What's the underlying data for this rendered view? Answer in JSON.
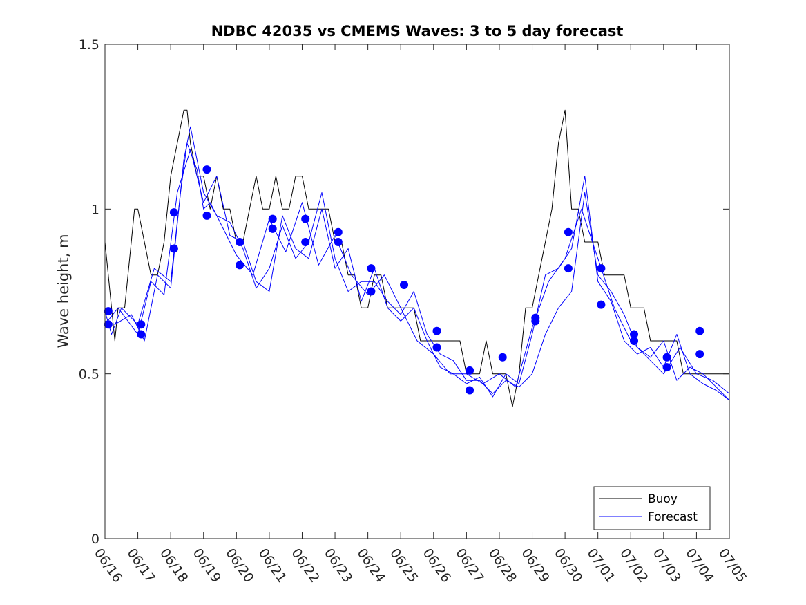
{
  "chart_data": {
    "type": "line",
    "title": "NDBC 42035 vs CMEMS Waves: 3 to 5 day forecast",
    "xlabel": "",
    "ylabel": "Wave height, m",
    "ylim": [
      0,
      1.5
    ],
    "yticks": [
      "0",
      "0.5",
      "1",
      "1.5"
    ],
    "xlim_days": [
      0,
      19
    ],
    "xtick_labels": [
      "06/16",
      "06/17",
      "06/18",
      "06/19",
      "06/20",
      "06/21",
      "06/22",
      "06/23",
      "06/24",
      "06/25",
      "06/26",
      "06/27",
      "06/28",
      "06/29",
      "06/30",
      "07/01",
      "07/02",
      "07/03",
      "07/04",
      "07/05"
    ],
    "grid": false,
    "legend_position": "bottom-right",
    "colors": {
      "buoy": "#000000",
      "forecast": "#0000ff",
      "markers": "#0000ff"
    },
    "series": [
      {
        "name": "Buoy",
        "style": "line",
        "x": [
          0,
          0.1,
          0.2,
          0.3,
          0.4,
          0.6,
          0.8,
          0.9,
          1.0,
          1.2,
          1.4,
          1.6,
          1.8,
          1.9,
          2.0,
          2.2,
          2.4,
          2.5,
          2.6,
          2.8,
          3.0,
          3.2,
          3.4,
          3.6,
          3.8,
          4.0,
          4.2,
          4.4,
          4.6,
          4.8,
          5.0,
          5.2,
          5.4,
          5.6,
          5.8,
          6.0,
          6.2,
          6.4,
          6.6,
          6.8,
          7.0,
          7.2,
          7.4,
          7.6,
          7.8,
          8.0,
          8.2,
          8.4,
          8.6,
          8.8,
          9.0,
          9.2,
          9.4,
          9.6,
          9.8,
          10.0,
          10.2,
          10.4,
          10.6,
          10.8,
          11.0,
          11.2,
          11.4,
          11.6,
          11.8,
          12.0,
          12.2,
          12.4,
          12.6,
          12.8,
          13.0,
          13.2,
          13.4,
          13.6,
          13.8,
          14.0,
          14.2,
          14.4,
          14.6,
          14.8,
          15.0,
          15.2,
          15.4,
          15.6,
          15.8,
          16.0,
          16.2,
          16.4,
          16.6,
          16.8,
          17.0,
          17.2,
          17.4,
          17.6,
          17.8,
          18.0,
          18.2,
          18.4,
          18.6,
          18.8,
          19.0
        ],
        "values": [
          0.9,
          0.8,
          0.7,
          0.6,
          0.7,
          0.7,
          0.9,
          1.0,
          1.0,
          0.9,
          0.8,
          0.8,
          0.9,
          1.0,
          1.1,
          1.2,
          1.3,
          1.3,
          1.2,
          1.1,
          1.1,
          1.0,
          1.1,
          1.0,
          1.0,
          0.9,
          0.9,
          1.0,
          1.1,
          1.0,
          1.0,
          1.1,
          1.0,
          1.0,
          1.1,
          1.1,
          1.0,
          1.0,
          1.0,
          1.0,
          0.9,
          0.9,
          0.8,
          0.8,
          0.7,
          0.7,
          0.8,
          0.8,
          0.7,
          0.7,
          0.7,
          0.7,
          0.7,
          0.6,
          0.6,
          0.6,
          0.6,
          0.6,
          0.6,
          0.6,
          0.5,
          0.5,
          0.5,
          0.6,
          0.5,
          0.5,
          0.5,
          0.4,
          0.5,
          0.7,
          0.7,
          0.8,
          0.9,
          1.0,
          1.2,
          1.3,
          1.0,
          1.0,
          0.9,
          0.9,
          0.9,
          0.8,
          0.8,
          0.8,
          0.8,
          0.7,
          0.7,
          0.7,
          0.6,
          0.6,
          0.6,
          0.6,
          0.6,
          0.5,
          0.5,
          0.5,
          0.5,
          0.5,
          0.5,
          0.5,
          0.5
        ]
      },
      {
        "name": "Forecast",
        "style": "line",
        "x": [
          0,
          0.2,
          0.5,
          1.0,
          1.5,
          2.0,
          2.3,
          2.5,
          2.8,
          3.0,
          3.2,
          3.6,
          4.0,
          4.5,
          5.0,
          5.5,
          6.0,
          6.5,
          7.0,
          7.5,
          8.0,
          8.5,
          9.0,
          9.5,
          10.0,
          10.5,
          11.0,
          11.5,
          12.0,
          12.5,
          13.0,
          13.5,
          14.0,
          14.5,
          15.0,
          15.5,
          16.0,
          16.5,
          17.0,
          17.5,
          18.0,
          18.5,
          19.0
        ],
        "values": [
          0.69,
          0.62,
          0.7,
          0.65,
          0.82,
          0.78,
          1.05,
          1.2,
          1.12,
          1.0,
          1.02,
          0.94,
          0.86,
          0.8,
          0.97,
          0.87,
          1.02,
          0.83,
          0.92,
          0.8,
          0.74,
          0.8,
          0.7,
          0.6,
          0.56,
          0.5,
          0.5,
          0.47,
          0.5,
          0.46,
          0.64,
          0.78,
          0.85,
          1.0,
          0.85,
          0.7,
          0.6,
          0.55,
          0.5,
          0.58,
          0.5,
          0.48,
          0.44
        ]
      },
      {
        "name": "",
        "style": "line",
        "x": [
          0,
          0.3,
          0.8,
          1.2,
          1.6,
          2.0,
          2.4,
          2.6,
          3.0,
          3.4,
          3.8,
          4.2,
          4.6,
          5.0,
          5.4,
          5.8,
          6.2,
          6.6,
          7.0,
          7.4,
          7.8,
          8.2,
          8.6,
          9.0,
          9.4,
          9.8,
          10.2,
          10.6,
          11.0,
          11.4,
          11.8,
          12.2,
          12.6,
          13.0,
          13.4,
          13.8,
          14.2,
          14.6,
          15.0,
          15.4,
          15.8,
          16.2,
          16.6,
          17.0,
          17.4,
          17.8,
          18.2,
          18.6,
          19.0
        ],
        "values": [
          0.66,
          0.65,
          0.68,
          0.6,
          0.8,
          0.76,
          1.15,
          1.25,
          1.05,
          0.98,
          0.96,
          0.88,
          0.76,
          0.82,
          0.95,
          0.85,
          0.9,
          1.05,
          0.85,
          0.75,
          0.78,
          0.78,
          0.72,
          0.68,
          0.75,
          0.62,
          0.56,
          0.54,
          0.48,
          0.48,
          0.44,
          0.48,
          0.46,
          0.5,
          0.62,
          0.7,
          0.75,
          1.05,
          0.8,
          0.75,
          0.68,
          0.58,
          0.55,
          0.6,
          0.48,
          0.52,
          0.5,
          0.46,
          0.42
        ]
      },
      {
        "name": "",
        "style": "line",
        "x": [
          0,
          0.4,
          1.0,
          1.4,
          1.8,
          2.2,
          2.6,
          3.0,
          3.4,
          3.8,
          4.2,
          4.6,
          5.0,
          5.4,
          5.8,
          6.2,
          6.6,
          7.0,
          7.4,
          7.8,
          8.2,
          8.6,
          9.0,
          9.4,
          9.8,
          10.2,
          10.6,
          11.0,
          11.4,
          11.8,
          12.2,
          12.6,
          13.0,
          13.4,
          13.8,
          14.2,
          14.6,
          15.0,
          15.4,
          15.8,
          16.2,
          16.6,
          17.0,
          17.4,
          17.8,
          18.2,
          18.6,
          19.0
        ],
        "values": [
          0.65,
          0.7,
          0.62,
          0.78,
          0.74,
          1.05,
          1.18,
          1.02,
          1.1,
          0.92,
          0.9,
          0.78,
          0.75,
          0.98,
          0.88,
          0.85,
          1.0,
          0.82,
          0.88,
          0.72,
          0.82,
          0.7,
          0.66,
          0.7,
          0.6,
          0.52,
          0.5,
          0.47,
          0.49,
          0.43,
          0.5,
          0.47,
          0.62,
          0.8,
          0.82,
          0.88,
          1.1,
          0.78,
          0.72,
          0.6,
          0.56,
          0.58,
          0.52,
          0.62,
          0.5,
          0.47,
          0.45,
          0.42
        ]
      },
      {
        "name": "",
        "style": "markers",
        "x": [
          0.1,
          0.1,
          1.1,
          1.1,
          2.1,
          2.1,
          3.1,
          3.1,
          4.1,
          4.1,
          5.1,
          5.1,
          6.1,
          6.1,
          7.1,
          7.1,
          8.1,
          8.1,
          9.1,
          10.1,
          10.1,
          11.1,
          11.1,
          12.1,
          13.1,
          13.1,
          14.1,
          14.1,
          15.1,
          15.1,
          16.1,
          16.1,
          17.1,
          17.1,
          18.1,
          18.1
        ],
        "values": [
          0.69,
          0.65,
          0.65,
          0.62,
          0.99,
          0.88,
          1.12,
          0.98,
          0.9,
          0.83,
          0.97,
          0.94,
          0.97,
          0.9,
          0.93,
          0.9,
          0.82,
          0.75,
          0.77,
          0.63,
          0.58,
          0.51,
          0.45,
          0.55,
          0.67,
          0.66,
          0.93,
          0.82,
          0.82,
          0.71,
          0.62,
          0.6,
          0.55,
          0.52,
          0.63,
          0.56
        ]
      }
    ]
  }
}
